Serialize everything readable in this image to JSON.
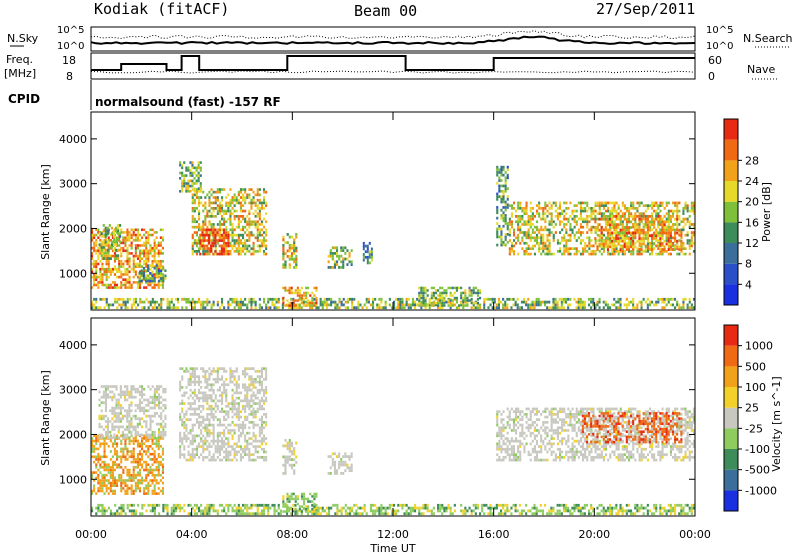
{
  "header": {
    "station": "Kodiak (fitACF)",
    "beam": "Beam 00",
    "date": "27/Sep/2011"
  },
  "noise_panel": {
    "left_label": "N.Sky",
    "right_label": "N.Search",
    "left_ticks": [
      "10^5",
      "10^0"
    ],
    "right_ticks": [
      "10^5",
      "10^0"
    ]
  },
  "freq_panel": {
    "left_label_1": "Freq.",
    "left_label_2": "[MHz]",
    "right_label": "Nave",
    "left_ticks": [
      "18",
      "8"
    ],
    "right_ticks": [
      "60",
      "0"
    ]
  },
  "cpid": {
    "label": "CPID",
    "text": "normalsound (fast) -157 RF"
  },
  "x_axis": {
    "label": "Time UT",
    "ticks": [
      "00:00",
      "04:00",
      "08:00",
      "12:00",
      "16:00",
      "20:00",
      "00:00"
    ]
  },
  "chart_data": [
    {
      "type": "heatmap",
      "name": "power",
      "ylabel": "Slant Range [km]",
      "y_ticks": [
        1000,
        2000,
        3000,
        4000
      ],
      "ylim": [
        180,
        4600
      ],
      "xlim_hours": [
        0,
        24
      ],
      "colorbar": {
        "label": "Power [dB]",
        "ticks": [
          "4",
          "8",
          "12",
          "16",
          "20",
          "24",
          "28"
        ],
        "colors": [
          "#1a2fe0",
          "#2a4fc8",
          "#3b6e9a",
          "#3d8c5a",
          "#7fc03a",
          "#e7d92a",
          "#f2a21a",
          "#f06a14",
          "#e82a14"
        ]
      },
      "regions": [
        {
          "t": [
            0.0,
            24.0
          ],
          "r": [
            200,
            450
          ],
          "level": 4
        },
        {
          "t": [
            0.0,
            2.9
          ],
          "r": [
            650,
            2000
          ],
          "level": 6
        },
        {
          "t": [
            0.3,
            1.2
          ],
          "r": [
            1300,
            2100
          ],
          "level": 4
        },
        {
          "t": [
            1.8,
            3.0
          ],
          "r": [
            800,
            1200
          ],
          "level": 3
        },
        {
          "t": [
            3.5,
            4.4
          ],
          "r": [
            2800,
            3500
          ],
          "level": 4
        },
        {
          "t": [
            4.0,
            7.0
          ],
          "r": [
            1400,
            2900
          ],
          "level": 5
        },
        {
          "t": [
            4.3,
            5.5
          ],
          "r": [
            1400,
            2000
          ],
          "level": 8
        },
        {
          "t": [
            7.6,
            8.2
          ],
          "r": [
            1100,
            1900
          ],
          "level": 5
        },
        {
          "t": [
            9.4,
            10.4
          ],
          "r": [
            1100,
            1600
          ],
          "level": 4
        },
        {
          "t": [
            10.8,
            11.2
          ],
          "r": [
            1200,
            1700
          ],
          "level": 3
        },
        {
          "t": [
            16.1,
            16.6
          ],
          "r": [
            1600,
            3400
          ],
          "level": 3
        },
        {
          "t": [
            16.6,
            24.0
          ],
          "r": [
            1400,
            2600
          ],
          "level": 5
        },
        {
          "t": [
            20.0,
            23.5
          ],
          "r": [
            1500,
            2300
          ],
          "level": 6
        },
        {
          "t": [
            7.6,
            9.0
          ],
          "r": [
            250,
            700
          ],
          "level": 6
        },
        {
          "t": [
            13.0,
            15.5
          ],
          "r": [
            250,
            700
          ],
          "level": 4
        }
      ]
    },
    {
      "type": "heatmap",
      "name": "velocity",
      "ylabel": "Slant Range [km]",
      "y_ticks": [
        1000,
        2000,
        3000,
        4000
      ],
      "ylim": [
        180,
        4600
      ],
      "xlim_hours": [
        0,
        24
      ],
      "colorbar": {
        "label": "Velocity [m s^-1]",
        "ticks": [
          "1000",
          "500",
          "100",
          "25",
          "-25",
          "-100",
          "-500",
          "-1000"
        ],
        "colors": [
          "#1a2fe0",
          "#3b6e9a",
          "#3d8c5a",
          "#8fcc60",
          "#c8c8c0",
          "#f2d22a",
          "#f2a21a",
          "#f06a14",
          "#e82a14"
        ]
      },
      "regions": [
        {
          "t": [
            0.0,
            24.0
          ],
          "r": [
            200,
            450
          ],
          "kind": "green"
        },
        {
          "t": [
            0.0,
            2.9
          ],
          "r": [
            650,
            2000
          ],
          "kind": "orange"
        },
        {
          "t": [
            0.3,
            3.0
          ],
          "r": [
            1900,
            3100
          ],
          "kind": "grey"
        },
        {
          "t": [
            3.5,
            7.0
          ],
          "r": [
            1400,
            3500
          ],
          "kind": "grey"
        },
        {
          "t": [
            7.6,
            8.2
          ],
          "r": [
            1100,
            1900
          ],
          "kind": "grey"
        },
        {
          "t": [
            9.4,
            10.4
          ],
          "r": [
            1100,
            1600
          ],
          "kind": "grey"
        },
        {
          "t": [
            16.1,
            24.0
          ],
          "r": [
            1400,
            2600
          ],
          "kind": "grey"
        },
        {
          "t": [
            19.5,
            23.5
          ],
          "r": [
            1800,
            2500
          ],
          "kind": "red"
        },
        {
          "t": [
            7.6,
            9.0
          ],
          "r": [
            250,
            700
          ],
          "kind": "green"
        }
      ]
    }
  ]
}
